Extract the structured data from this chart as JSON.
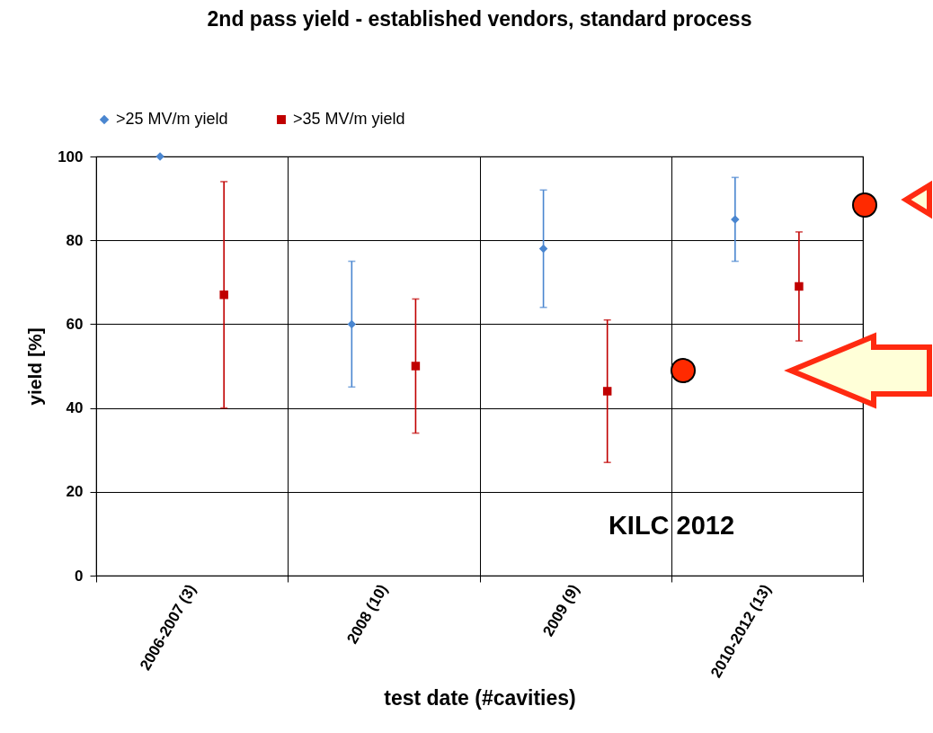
{
  "chart_data": {
    "type": "scatter",
    "title": "2nd pass yield - established vendors, standard process",
    "xlabel": "test date (#cavities)",
    "ylabel": "yield [%]",
    "categories": [
      "2006-2007 (3)",
      "2008 (10)",
      "2009 (9)",
      "2010-2012 (13)"
    ],
    "series": [
      {
        "name": ">25 MV/m yield",
        "color": "#4a86d0",
        "marker": "diamond",
        "values": [
          100,
          60,
          78,
          85
        ],
        "errors": [
          null,
          [
            45,
            75
          ],
          [
            64,
            92
          ],
          [
            75,
            95
          ]
        ]
      },
      {
        "name": ">35 MV/m yield",
        "color": "#c00000",
        "marker": "square",
        "values": [
          67,
          50,
          44,
          69
        ],
        "errors": [
          [
            40,
            94
          ],
          [
            34,
            66
          ],
          [
            27,
            61
          ],
          [
            56,
            82
          ]
        ]
      }
    ],
    "ylim": [
      0,
      100
    ],
    "yticks": [
      0,
      20,
      40,
      60,
      80,
      100
    ],
    "grid": true,
    "legend": "top",
    "annotations": [
      "KILC 2012"
    ]
  }
}
